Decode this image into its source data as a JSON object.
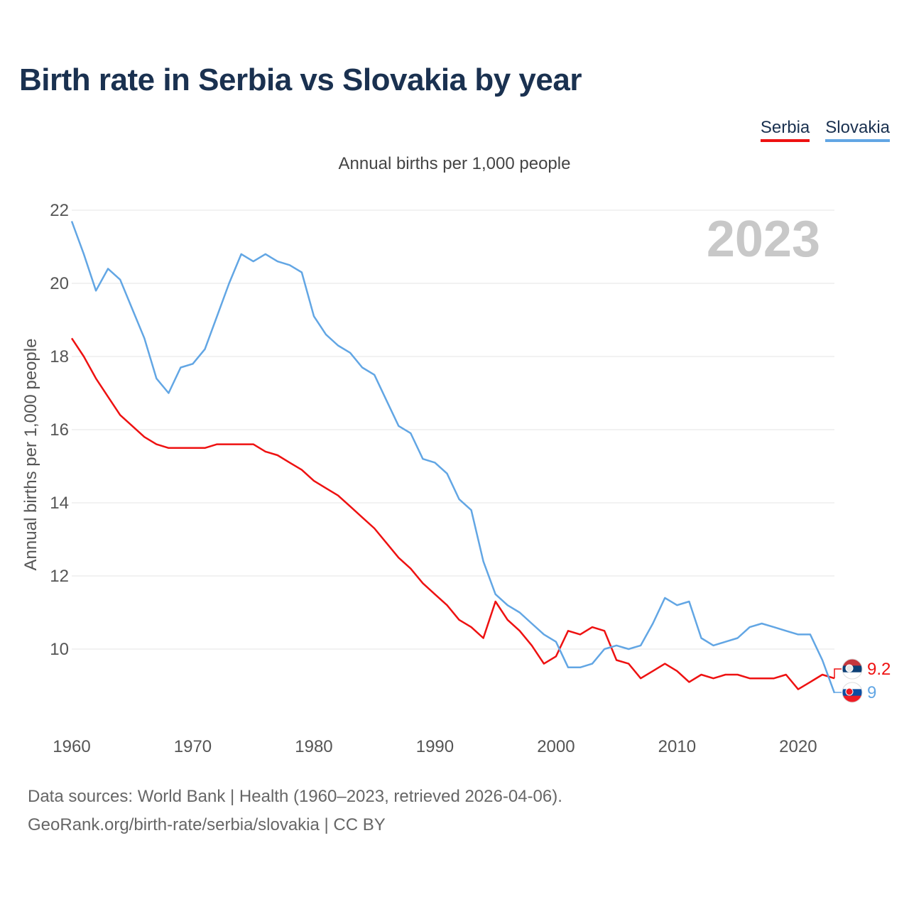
{
  "header": {
    "title": "Birth rate in Serbia vs Slovakia by year",
    "subtitle": "Annual births per 1,000 people"
  },
  "legend": [
    {
      "name": "Serbia",
      "color": "#ee1111"
    },
    {
      "name": "Slovakia",
      "color": "#62a6e4"
    }
  ],
  "footer": {
    "source_line": "Data sources: World Bank | Health (1960–2023, retrieved 2026-04-06).",
    "url_line": "GeoRank.org/birth-rate/serbia/slovakia | CC BY"
  },
  "chart_data": {
    "type": "line",
    "title": "Birth rate in Serbia vs Slovakia by year",
    "ylabel": "Annual births per 1,000 people",
    "xlabel": "",
    "year_watermark": "2023",
    "xlim": [
      1960,
      2023
    ],
    "ylim": [
      8,
      22
    ],
    "x_ticks": [
      1960,
      1970,
      1980,
      1990,
      2000,
      2010,
      2020
    ],
    "y_ticks": [
      10,
      12,
      14,
      16,
      18,
      20,
      22
    ],
    "grid": true,
    "x": [
      1960,
      1961,
      1962,
      1963,
      1964,
      1965,
      1966,
      1967,
      1968,
      1969,
      1970,
      1971,
      1972,
      1973,
      1974,
      1975,
      1976,
      1977,
      1978,
      1979,
      1980,
      1981,
      1982,
      1983,
      1984,
      1985,
      1986,
      1987,
      1988,
      1989,
      1990,
      1991,
      1992,
      1993,
      1994,
      1995,
      1996,
      1997,
      1998,
      1999,
      2000,
      2001,
      2002,
      2003,
      2004,
      2005,
      2006,
      2007,
      2008,
      2009,
      2010,
      2011,
      2012,
      2013,
      2014,
      2015,
      2016,
      2017,
      2018,
      2019,
      2020,
      2021,
      2022,
      2023
    ],
    "series": [
      {
        "name": "Serbia",
        "color": "#ee1111",
        "final_label": "9.2",
        "values": [
          18.5,
          18.0,
          17.4,
          16.9,
          16.4,
          16.1,
          15.8,
          15.6,
          15.5,
          15.5,
          15.5,
          15.5,
          15.6,
          15.6,
          15.6,
          15.6,
          15.4,
          15.3,
          15.1,
          14.9,
          14.6,
          14.4,
          14.2,
          13.9,
          13.6,
          13.3,
          12.9,
          12.5,
          12.2,
          11.8,
          11.5,
          11.2,
          10.8,
          10.6,
          10.3,
          11.3,
          10.8,
          10.5,
          10.1,
          9.6,
          9.8,
          10.5,
          10.4,
          10.6,
          10.5,
          9.7,
          9.6,
          9.2,
          9.4,
          9.6,
          9.4,
          9.1,
          9.3,
          9.2,
          9.3,
          9.3,
          9.2,
          9.2,
          9.2,
          9.3,
          8.9,
          9.1,
          9.3,
          9.2
        ]
      },
      {
        "name": "Slovakia",
        "color": "#62a6e4",
        "final_label": "9",
        "values": [
          21.7,
          20.8,
          19.8,
          20.4,
          20.1,
          19.3,
          18.5,
          17.4,
          17.0,
          17.7,
          17.8,
          18.2,
          19.1,
          20.0,
          20.8,
          20.6,
          20.8,
          20.6,
          20.5,
          20.3,
          19.1,
          18.6,
          18.3,
          18.1,
          17.7,
          17.5,
          16.8,
          16.1,
          15.9,
          15.2,
          15.1,
          14.8,
          14.1,
          13.8,
          12.4,
          11.5,
          11.2,
          11.0,
          10.7,
          10.4,
          10.2,
          9.5,
          9.5,
          9.6,
          10.0,
          10.1,
          10.0,
          10.1,
          10.7,
          11.4,
          11.2,
          11.3,
          10.3,
          10.1,
          10.2,
          10.3,
          10.6,
          10.7,
          10.6,
          10.5,
          10.4,
          10.4,
          9.7,
          8.8
        ]
      }
    ]
  }
}
